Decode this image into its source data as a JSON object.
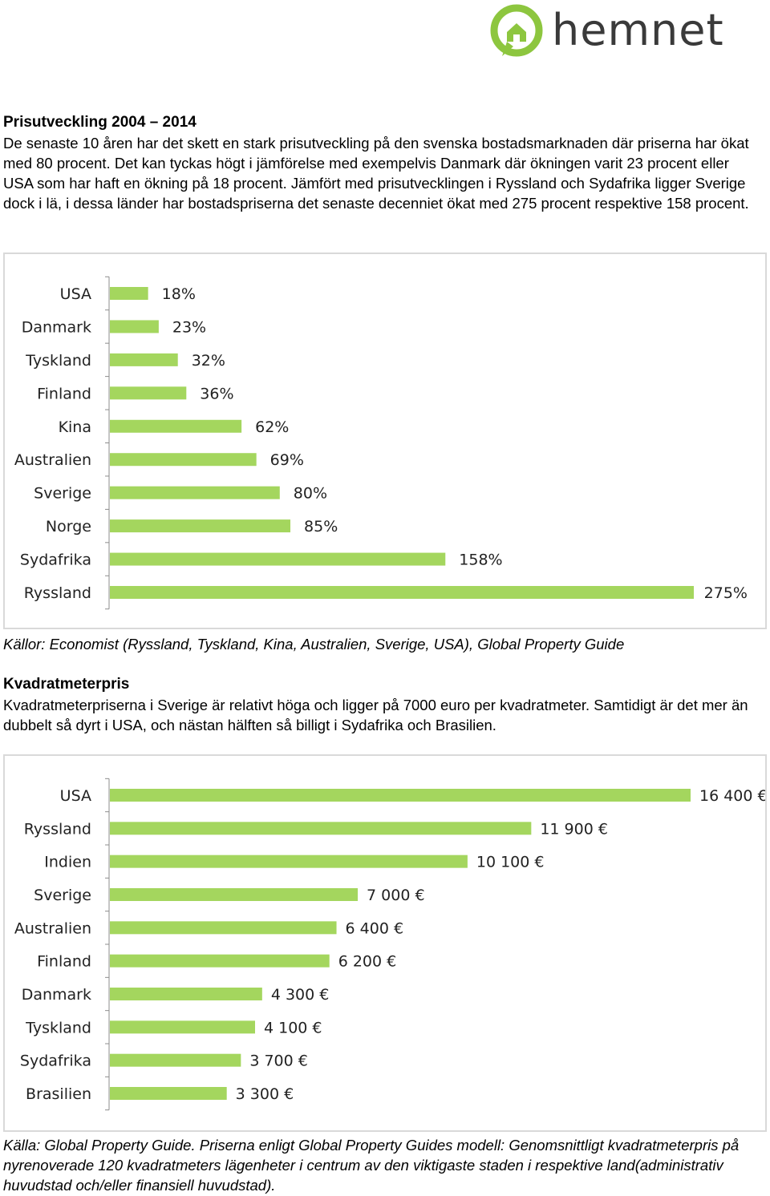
{
  "brand": {
    "name": "hemnet",
    "accent": "#8dc63f",
    "text_color": "#3a3a3a"
  },
  "section1": {
    "title": "Prisutveckling 2004 – 2014",
    "body": "De senaste 10 åren har det skett en stark prisutveckling på den svenska bostadsmarknaden där priserna har ökat med 80 procent. Det kan tyckas högt i jämförelse med exempelvis Danmark där ökningen varit 23 procent eller USA som har haft en ökning på 18 procent. Jämfört med prisutvecklingen i Ryssland och Sydafrika ligger Sverige dock i lä, i dessa länder har bostadspriserna det senaste decenniet ökat med 275 procent respektive 158 procent.",
    "source": "Källor: Economist (Ryssland, Tyskland, Kina, Australien, Sverige, USA), Global Property Guide"
  },
  "section2": {
    "title": "Kvadratmeterpris",
    "body": "Kvadratmeterpriserna i Sverige är relativt höga och ligger på 7000 euro per kvadratmeter. Samtidigt är det mer än dubbelt så dyrt i USA, och nästan hälften så billigt i Sydafrika och Brasilien.",
    "source": "Källa: Global Property Guide. Priserna enligt Global Property Guides modell: Genomsnittligt kvadratmeterpris på nyrenoverade 120 kvadratmeters lägenheter i centrum av den viktigaste staden i respektive land(administrativ huvudstad och/eller finansiell huvudstad)."
  },
  "chart_data": [
    {
      "type": "bar",
      "orientation": "horizontal",
      "title": "",
      "categories": [
        "USA",
        "Danmark",
        "Tyskland",
        "Finland",
        "Kina",
        "Australien",
        "Sverige",
        "Norge",
        "Sydafrika",
        "Ryssland"
      ],
      "values": [
        18,
        23,
        32,
        36,
        62,
        69,
        80,
        85,
        158,
        275
      ],
      "value_labels": [
        "18%",
        "23%",
        "32%",
        "36%",
        "62%",
        "69%",
        "80%",
        "85%",
        "158%",
        "275%"
      ],
      "unit": "%",
      "xlim": [
        0,
        275
      ],
      "bar_color": "#a4d65e",
      "grid": false,
      "legend": "none"
    },
    {
      "type": "bar",
      "orientation": "horizontal",
      "title": "",
      "categories": [
        "USA",
        "Ryssland",
        "Indien",
        "Sverige",
        "Australien",
        "Finland",
        "Danmark",
        "Tyskland",
        "Sydafrika",
        "Brasilien"
      ],
      "values": [
        16400,
        11900,
        10100,
        7000,
        6400,
        6200,
        4300,
        4100,
        3700,
        3300
      ],
      "value_labels": [
        "16 400 €",
        "11 900 €",
        "10 100 €",
        "7 000 €",
        "6 400 €",
        "6 200 €",
        "4 300 €",
        "4 100 €",
        "3 700 €",
        "3 300 €"
      ],
      "unit": "€",
      "xlim": [
        0,
        16400
      ],
      "bar_color": "#a4d65e",
      "grid": false,
      "legend": "none"
    }
  ]
}
